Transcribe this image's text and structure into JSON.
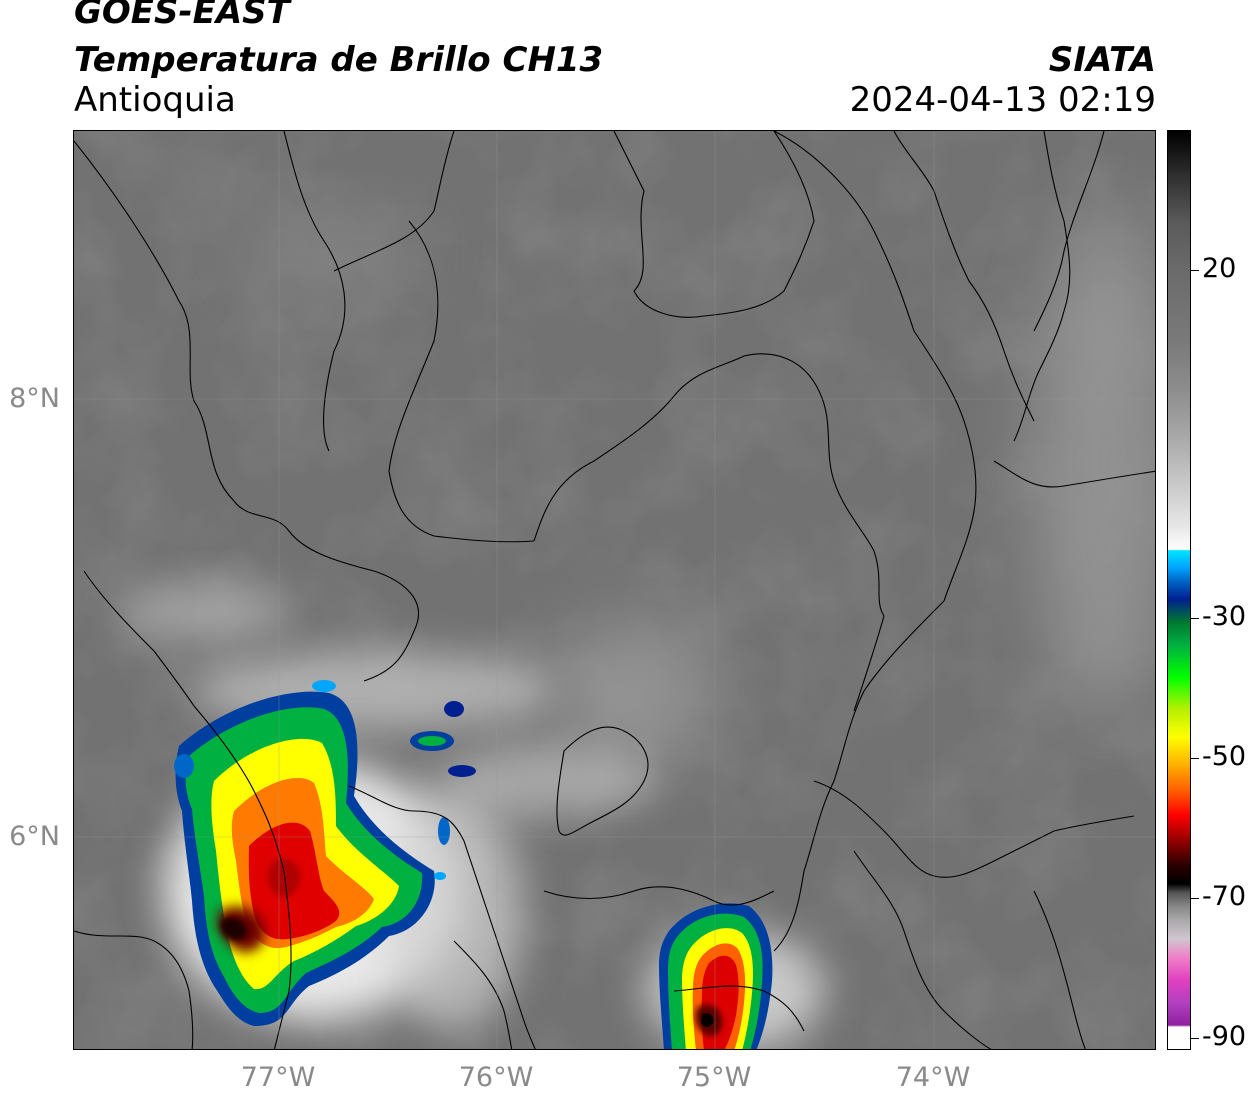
{
  "header": {
    "line1": "GOES-EAST",
    "line2": "Temperatura de Brillo CH13",
    "line3": "Antioquia",
    "org": "SIATA",
    "datetime": "2024-04-13 02:19"
  },
  "map": {
    "lat_ticks": [
      "8°N",
      "6°N"
    ],
    "lon_ticks": [
      "77°W",
      "76°W",
      "75°W",
      "74°W"
    ]
  },
  "colorbar": {
    "tick_labels": [
      "20",
      "-30",
      "-50",
      "-70",
      "-90"
    ],
    "colors": {
      "warm_gray": "#7a7a7a",
      "cold_white": "#f8f8f8",
      "cyan": "#00e5ff",
      "blue": "#00208f",
      "green": "#00ff00",
      "yellow": "#ffff00",
      "orange": "#ff5a00",
      "red": "#ff0000",
      "black": "#000000",
      "magenta": "#e040c0"
    }
  }
}
